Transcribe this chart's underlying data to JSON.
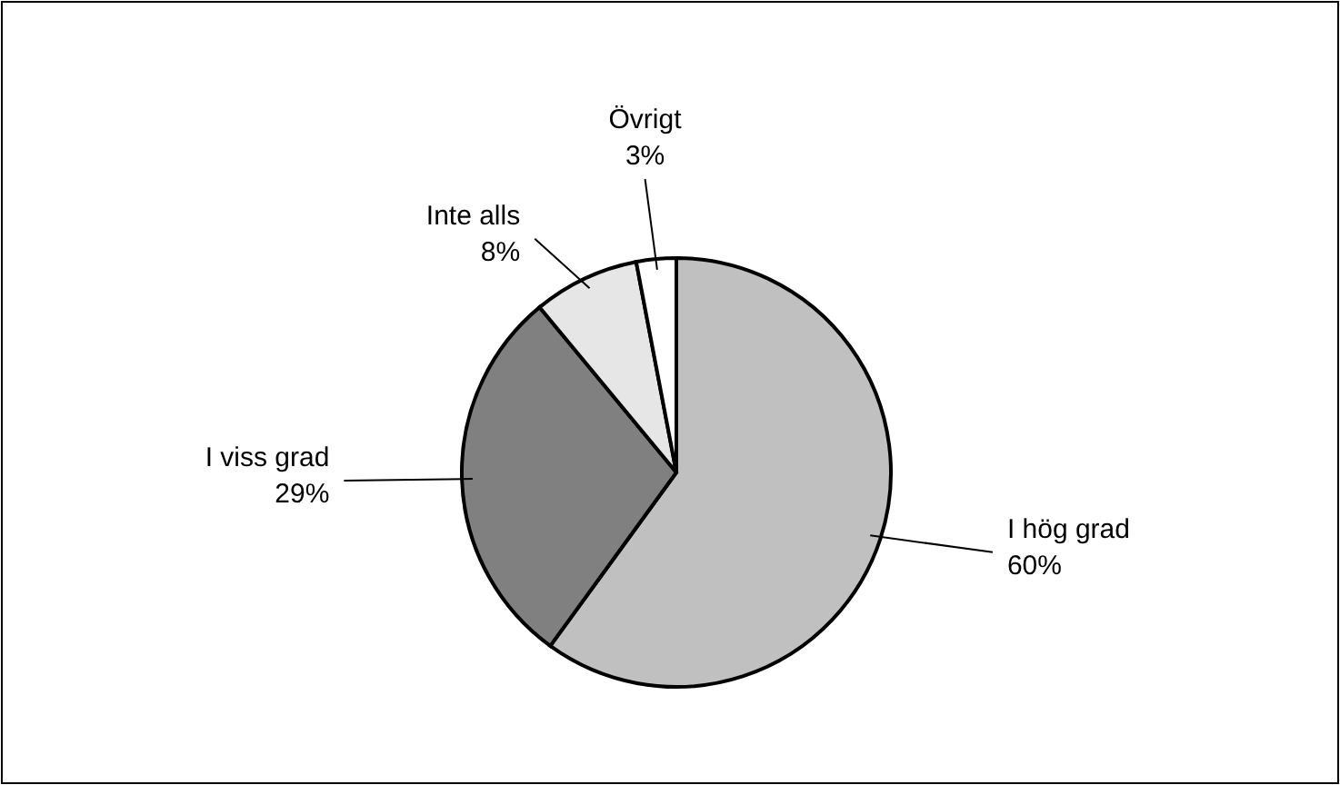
{
  "chart_data": {
    "type": "pie",
    "categories": [
      "I hög grad",
      "I viss grad",
      "Inte alls",
      "Övrigt"
    ],
    "values": [
      60,
      29,
      8,
      3
    ],
    "colors": [
      "#c0c0c0",
      "#808080",
      "#e6e6e6",
      "#ffffff"
    ],
    "value_labels": [
      "60%",
      "29%",
      "8%",
      "3%"
    ]
  }
}
